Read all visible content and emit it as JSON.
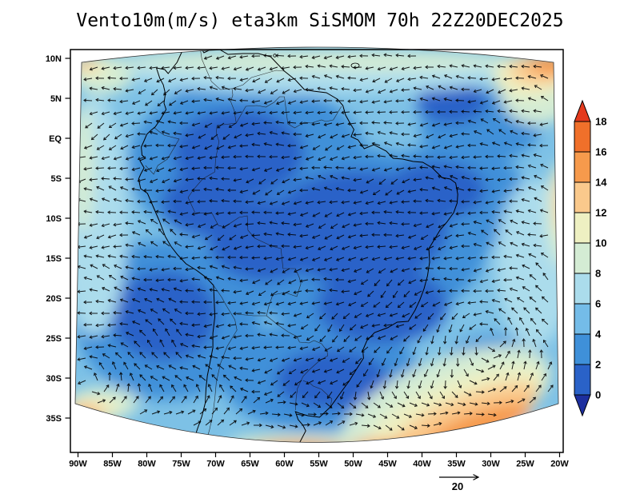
{
  "title": "Vento10m(m/s) eta3km SiSMOM 70h 22Z20DEC2025",
  "axes": {
    "y_tick_labels": [
      "10N",
      "5N",
      "EQ",
      "5S",
      "10S",
      "15S",
      "20S",
      "25S",
      "30S",
      "35S"
    ],
    "x_tick_labels": [
      "90W",
      "85W",
      "80W",
      "75W",
      "70W",
      "65W",
      "60W",
      "55W",
      "50W",
      "45W",
      "40W",
      "35W",
      "30W",
      "25W",
      "20W"
    ]
  },
  "colorbar": {
    "tick_labels": [
      "18",
      "16",
      "14",
      "12",
      "10",
      "8",
      "6",
      "4",
      "2",
      "0"
    ],
    "segments_top_to_bottom": [
      "#f0702a",
      "#f69a4c",
      "#fac98c",
      "#eef0c2",
      "#d4ecd4",
      "#abdcec",
      "#74bce8",
      "#3f90d9",
      "#2a62c8"
    ],
    "over_color": "#e43a1d",
    "under_color": "#1d2f9f"
  },
  "reference_vector_label": "20",
  "field_palette": {
    "base": "#7dc1e6",
    "dark_blue": "#2a62c8",
    "blue": "#3f90d9",
    "light_cyan": "#abdcec",
    "pale_green": "#d4ecd4",
    "cream": "#eef0c2",
    "light_orange": "#fac98c",
    "orange": "#f69a4c"
  },
  "field_regions": [
    [
      "blue",
      310,
      205,
      150,
      105
    ],
    [
      "blue",
      440,
      300,
      170,
      115
    ],
    [
      "blue",
      210,
      400,
      115,
      100
    ],
    [
      "blue",
      400,
      470,
      125,
      70
    ],
    [
      "blue",
      560,
      250,
      100,
      70
    ],
    [
      "blue",
      620,
      465,
      70,
      45
    ],
    [
      "blue",
      600,
      160,
      75,
      45
    ],
    [
      "blue",
      300,
      120,
      80,
      38
    ],
    [
      "dark_blue",
      298,
      192,
      82,
      55
    ],
    [
      "dark_blue",
      332,
      300,
      72,
      52
    ],
    [
      "dark_blue",
      448,
      285,
      112,
      72
    ],
    [
      "dark_blue",
      545,
      238,
      62,
      36
    ],
    [
      "dark_blue",
      205,
      395,
      66,
      56
    ],
    [
      "dark_blue",
      415,
      475,
      70,
      38
    ],
    [
      "dark_blue",
      632,
      473,
      44,
      26
    ],
    [
      "dark_blue",
      565,
      128,
      44,
      26
    ],
    [
      "dark_blue",
      255,
      255,
      52,
      40
    ],
    [
      "dark_blue",
      478,
      382,
      82,
      48
    ],
    [
      "light_cyan",
      118,
      270,
      42,
      150
    ],
    [
      "light_cyan",
      668,
      330,
      48,
      105
    ],
    [
      "light_cyan",
      395,
      92,
      240,
      26
    ],
    [
      "light_cyan",
      660,
      555,
      130,
      35
    ],
    [
      "pale_green",
      398,
      76,
      250,
      14
    ],
    [
      "pale_green",
      104,
      210,
      14,
      80
    ],
    [
      "pale_green",
      128,
      94,
      38,
      24
    ],
    [
      "pale_green",
      672,
      118,
      46,
      38
    ],
    [
      "pale_green",
      700,
      268,
      16,
      65
    ],
    [
      "pale_green",
      557,
      508,
      140,
      58,
      -22
    ],
    [
      "pale_green",
      128,
      505,
      45,
      20
    ],
    [
      "pale_green",
      378,
      556,
      95,
      13
    ],
    [
      "cream",
      660,
      96,
      44,
      26
    ],
    [
      "cream",
      703,
      256,
      12,
      48
    ],
    [
      "cream",
      570,
      516,
      120,
      40,
      -22
    ],
    [
      "cream",
      118,
      512,
      32,
      15
    ],
    [
      "cream",
      356,
      560,
      62,
      10
    ],
    [
      "cream",
      114,
      84,
      24,
      11
    ],
    [
      "light_orange",
      674,
      88,
      38,
      18
    ],
    [
      "light_orange",
      705,
      252,
      9,
      38
    ],
    [
      "light_orange",
      582,
      524,
      98,
      28,
      -22
    ],
    [
      "light_orange",
      108,
      516,
      24,
      11
    ],
    [
      "light_orange",
      390,
      562,
      48,
      8
    ],
    [
      "light_orange",
      106,
      80,
      15,
      8
    ],
    [
      "orange",
      690,
      81,
      28,
      12
    ],
    [
      "orange",
      598,
      534,
      70,
      18,
      -20
    ],
    [
      "orange",
      480,
      559,
      42,
      8
    ],
    [
      "orange",
      370,
      562,
      55,
      9
    ],
    [
      "orange",
      100,
      521,
      15,
      8
    ]
  ]
}
